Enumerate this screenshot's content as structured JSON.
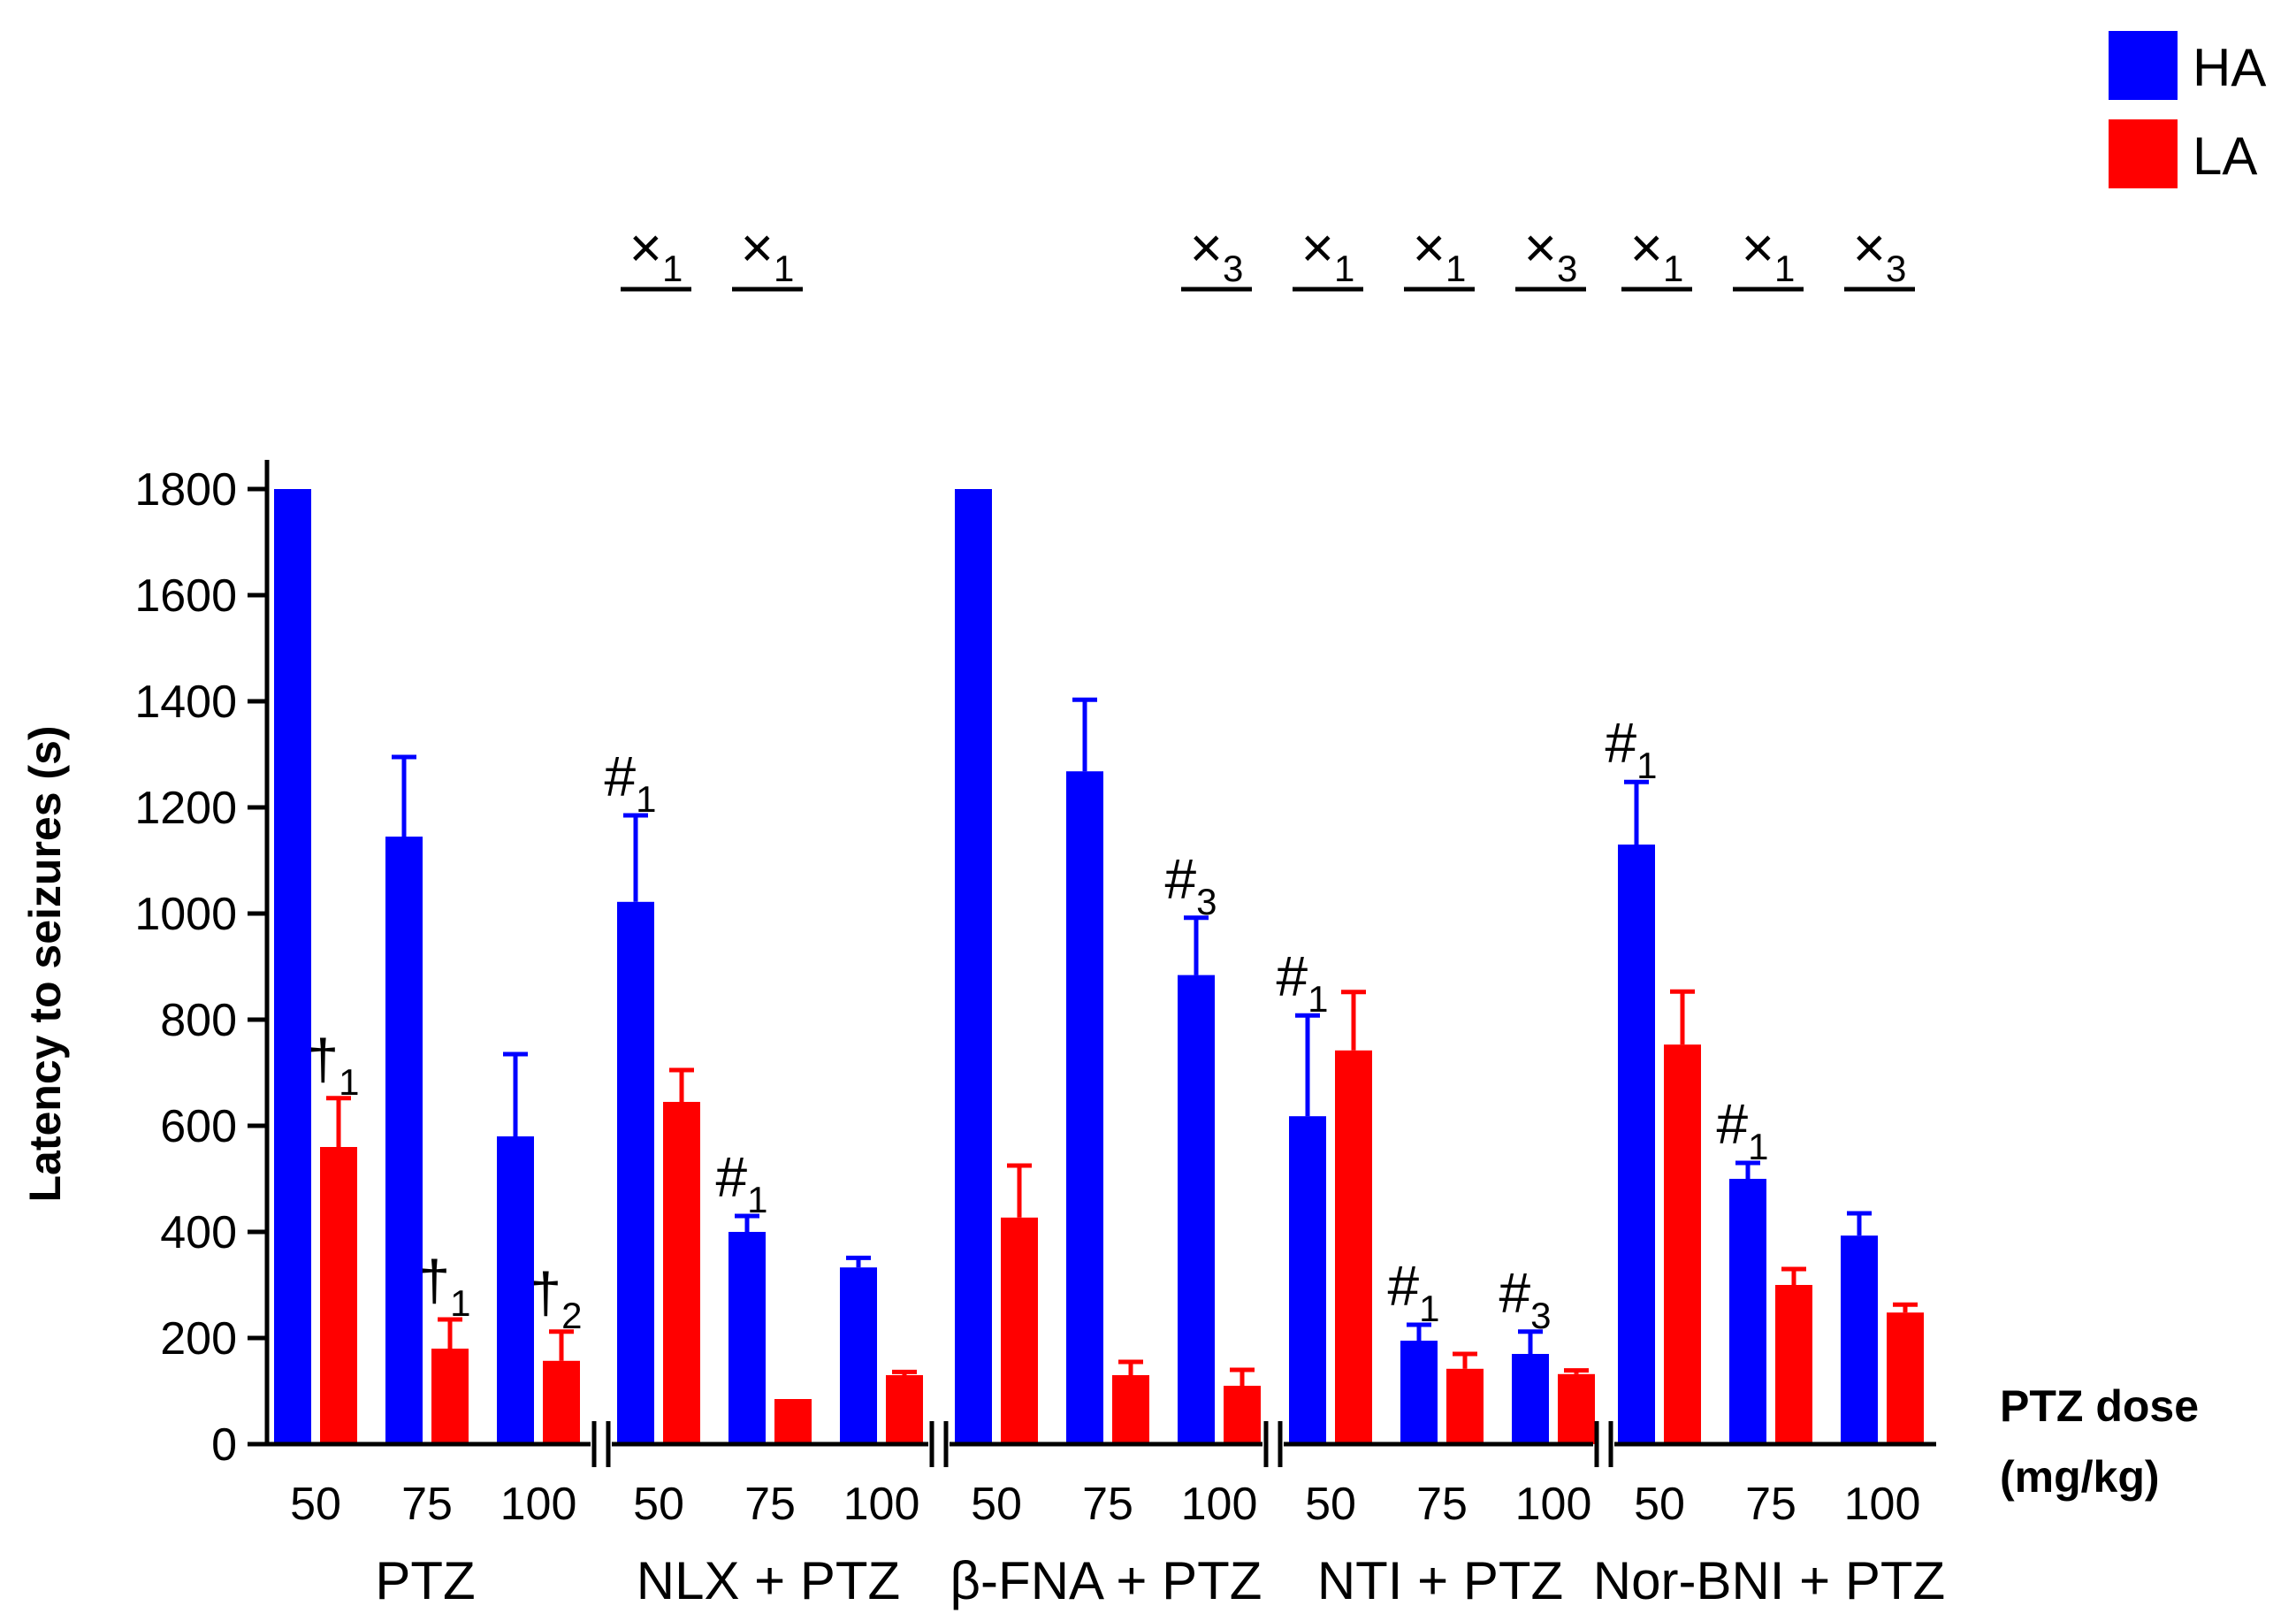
{
  "chart_data": {
    "type": "bar",
    "ylabel": "Latency to seizures (s)",
    "xlabel_lines": [
      "PTZ dose",
      "(mg/kg)"
    ],
    "ylim": [
      0,
      1800
    ],
    "yticks": [
      "0",
      "200",
      "400",
      "600",
      "800",
      "1000",
      "1200",
      "1400",
      "1600",
      "1800"
    ],
    "legend": [
      {
        "name": "HA",
        "color": "#0000ff"
      },
      {
        "name": "LA",
        "color": "#ff0000"
      }
    ],
    "groups": [
      {
        "label": "PTZ",
        "doses": [
          "50",
          "75",
          "100"
        ],
        "HA": {
          "values": [
            1800,
            1145,
            580
          ],
          "errors": [
            0,
            150,
            155
          ]
        },
        "LA": {
          "values": [
            560,
            180,
            157
          ],
          "errors": [
            92,
            55,
            55
          ]
        },
        "annotations": [
          {
            "dose_index": 0,
            "series": "LA",
            "symbol": "†",
            "sub": "1"
          },
          {
            "dose_index": 1,
            "series": "LA",
            "symbol": "†",
            "sub": "1"
          },
          {
            "dose_index": 2,
            "series": "LA",
            "symbol": "†",
            "sub": "2"
          }
        ],
        "brackets": [
          {
            "dose_index": 0,
            "show": false,
            "sub": ""
          },
          {
            "dose_index": 1,
            "show": false,
            "sub": ""
          },
          {
            "dose_index": 2,
            "show": false,
            "sub": ""
          }
        ]
      },
      {
        "label": "NLX + PTZ",
        "doses": [
          "50",
          "75",
          "100"
        ],
        "HA": {
          "values": [
            1022,
            400,
            333
          ],
          "errors": [
            163,
            30,
            18
          ]
        },
        "LA": {
          "values": [
            645,
            85,
            130
          ],
          "errors": [
            60,
            0,
            6
          ]
        },
        "annotations": [
          {
            "dose_index": 0,
            "series": "HA",
            "symbol": "#",
            "sub": "1"
          },
          {
            "dose_index": 1,
            "series": "HA",
            "symbol": "#",
            "sub": "1"
          }
        ],
        "brackets": [
          {
            "dose_index": 0,
            "show": true,
            "sub": "1"
          },
          {
            "dose_index": 1,
            "show": true,
            "sub": "1"
          },
          {
            "dose_index": 2,
            "show": false,
            "sub": ""
          }
        ]
      },
      {
        "label": "β-FNA + PTZ",
        "doses": [
          "50",
          "75",
          "100"
        ],
        "HA": {
          "values": [
            1800,
            1268,
            884
          ],
          "errors": [
            0,
            135,
            108
          ]
        },
        "LA": {
          "values": [
            427,
            130,
            110
          ],
          "errors": [
            98,
            25,
            30
          ]
        },
        "annotations": [
          {
            "dose_index": 2,
            "series": "HA",
            "symbol": "#",
            "sub": "3"
          }
        ],
        "brackets": [
          {
            "dose_index": 0,
            "show": false,
            "sub": ""
          },
          {
            "dose_index": 1,
            "show": false,
            "sub": ""
          },
          {
            "dose_index": 2,
            "show": true,
            "sub": "3"
          }
        ]
      },
      {
        "label": "NTI + PTZ",
        "doses": [
          "50",
          "75",
          "100"
        ],
        "HA": {
          "values": [
            618,
            195,
            170
          ],
          "errors": [
            190,
            30,
            42
          ]
        },
        "LA": {
          "values": [
            742,
            142,
            132
          ],
          "errors": [
            110,
            28,
            7
          ]
        },
        "annotations": [
          {
            "dose_index": 0,
            "series": "HA",
            "symbol": "#",
            "sub": "1"
          },
          {
            "dose_index": 1,
            "series": "HA",
            "symbol": "#",
            "sub": "1"
          },
          {
            "dose_index": 2,
            "series": "HA",
            "symbol": "#",
            "sub": "3"
          }
        ],
        "brackets": [
          {
            "dose_index": 0,
            "show": true,
            "sub": "1"
          },
          {
            "dose_index": 1,
            "show": true,
            "sub": "1"
          },
          {
            "dose_index": 2,
            "show": true,
            "sub": "3"
          }
        ]
      },
      {
        "label": "Nor-BNI + PTZ",
        "doses": [
          "50",
          "75",
          "100"
        ],
        "HA": {
          "values": [
            1130,
            500,
            393
          ],
          "errors": [
            118,
            30,
            42
          ]
        },
        "LA": {
          "values": [
            753,
            300,
            248
          ],
          "errors": [
            100,
            30,
            15
          ]
        },
        "annotations": [
          {
            "dose_index": 0,
            "series": "HA",
            "symbol": "#",
            "sub": "1"
          },
          {
            "dose_index": 1,
            "series": "HA",
            "symbol": "#",
            "sub": "1"
          }
        ],
        "brackets": [
          {
            "dose_index": 0,
            "show": true,
            "sub": "1"
          },
          {
            "dose_index": 1,
            "show": true,
            "sub": "1"
          },
          {
            "dose_index": 2,
            "show": true,
            "sub": "3"
          }
        ]
      }
    ],
    "bracket_symbol": "×"
  }
}
